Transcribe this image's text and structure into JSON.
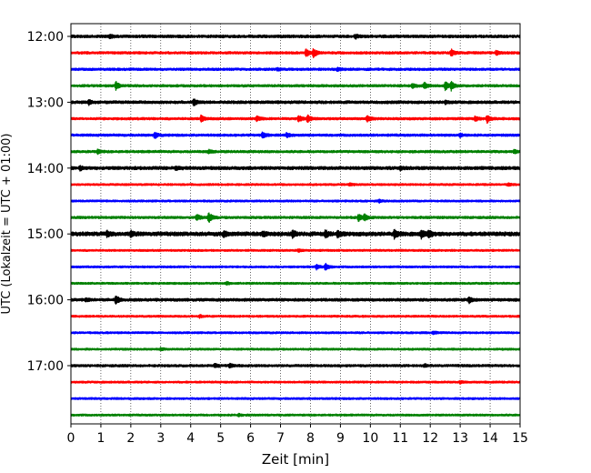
{
  "chart_data": {
    "type": "line",
    "title": "",
    "xlabel": "Zeit  [min]",
    "ylabel": "UTC (Lokalzeit = UTC + 01:00)",
    "xlim": [
      0,
      15
    ],
    "xticks": [
      0,
      1,
      2,
      3,
      4,
      5,
      6,
      7,
      8,
      9,
      10,
      11,
      12,
      13,
      14,
      15
    ],
    "x_gridlines": "dotted vertical at each minute",
    "y_tick_labels": [
      "12:00",
      "13:00",
      "14:00",
      "15:00",
      "16:00",
      "17:00"
    ],
    "trace_interval_minutes": 15,
    "color_cycle": [
      "#000000",
      "#ff0000",
      "#0000ff",
      "#008000"
    ],
    "traces": [
      {
        "start": "12:00",
        "color": "#000000",
        "noise": 0.35,
        "events": [
          {
            "t": 9.5,
            "amp": 0.5
          },
          {
            "t": 1.3,
            "amp": 0.35
          }
        ]
      },
      {
        "start": "12:15",
        "color": "#ff0000",
        "noise": 0.3,
        "events": [
          {
            "t": 7.85,
            "amp": 1.0
          },
          {
            "t": 8.1,
            "amp": 1.1
          },
          {
            "t": 12.7,
            "amp": 0.8
          },
          {
            "t": 14.2,
            "amp": 0.5
          }
        ]
      },
      {
        "start": "12:30",
        "color": "#0000ff",
        "noise": 0.3,
        "events": [
          {
            "t": 8.9,
            "amp": 0.4
          },
          {
            "t": 6.9,
            "amp": 0.3
          }
        ]
      },
      {
        "start": "12:45",
        "color": "#008000",
        "noise": 0.3,
        "events": [
          {
            "t": 1.5,
            "amp": 1.0
          },
          {
            "t": 11.8,
            "amp": 0.7
          },
          {
            "t": 12.5,
            "amp": 1.2
          },
          {
            "t": 12.7,
            "amp": 1.0
          },
          {
            "t": 11.4,
            "amp": 0.6
          }
        ]
      },
      {
        "start": "13:00",
        "color": "#000000",
        "noise": 0.35,
        "events": [
          {
            "t": 4.1,
            "amp": 0.8
          },
          {
            "t": 0.6,
            "amp": 0.5
          },
          {
            "t": 12.5,
            "amp": 0.4
          }
        ]
      },
      {
        "start": "13:15",
        "color": "#ff0000",
        "noise": 0.3,
        "events": [
          {
            "t": 4.35,
            "amp": 0.9
          },
          {
            "t": 6.2,
            "amp": 0.6
          },
          {
            "t": 7.6,
            "amp": 0.8
          },
          {
            "t": 7.9,
            "amp": 0.9
          },
          {
            "t": 9.9,
            "amp": 0.7
          },
          {
            "t": 13.9,
            "amp": 1.0
          },
          {
            "t": 13.5,
            "amp": 0.6
          }
        ]
      },
      {
        "start": "13:30",
        "color": "#0000ff",
        "noise": 0.3,
        "events": [
          {
            "t": 2.8,
            "amp": 0.8
          },
          {
            "t": 6.4,
            "amp": 0.8
          },
          {
            "t": 7.2,
            "amp": 0.5
          },
          {
            "t": 13.0,
            "amp": 0.4
          }
        ]
      },
      {
        "start": "13:45",
        "color": "#008000",
        "noise": 0.3,
        "events": [
          {
            "t": 0.9,
            "amp": 0.5
          },
          {
            "t": 4.6,
            "amp": 0.4
          },
          {
            "t": 14.8,
            "amp": 0.4
          }
        ]
      },
      {
        "start": "14:00",
        "color": "#000000",
        "noise": 0.4,
        "events": [
          {
            "t": 0.3,
            "amp": 0.5
          },
          {
            "t": 3.5,
            "amp": 0.3
          },
          {
            "t": 11.0,
            "amp": 0.4
          }
        ]
      },
      {
        "start": "14:15",
        "color": "#ff0000",
        "noise": 0.25,
        "events": [
          {
            "t": 9.3,
            "amp": 0.3
          },
          {
            "t": 14.6,
            "amp": 0.3
          }
        ]
      },
      {
        "start": "14:30",
        "color": "#0000ff",
        "noise": 0.25,
        "events": [
          {
            "t": 10.3,
            "amp": 0.3
          }
        ]
      },
      {
        "start": "14:45",
        "color": "#008000",
        "noise": 0.3,
        "events": [
          {
            "t": 4.2,
            "amp": 0.8
          },
          {
            "t": 4.6,
            "amp": 1.3
          },
          {
            "t": 9.6,
            "amp": 0.9
          },
          {
            "t": 9.8,
            "amp": 0.8
          }
        ]
      },
      {
        "start": "15:00",
        "color": "#000000",
        "noise": 0.5,
        "events": [
          {
            "t": 1.2,
            "amp": 0.6
          },
          {
            "t": 2.0,
            "amp": 0.6
          },
          {
            "t": 5.1,
            "amp": 0.6
          },
          {
            "t": 6.4,
            "amp": 0.6
          },
          {
            "t": 7.4,
            "amp": 0.8
          },
          {
            "t": 8.5,
            "amp": 0.9
          },
          {
            "t": 8.9,
            "amp": 0.7
          },
          {
            "t": 10.8,
            "amp": 1.0
          },
          {
            "t": 11.7,
            "amp": 0.9
          },
          {
            "t": 11.95,
            "amp": 0.8
          }
        ]
      },
      {
        "start": "15:15",
        "color": "#ff0000",
        "noise": 0.25,
        "events": [
          {
            "t": 7.6,
            "amp": 0.3
          }
        ]
      },
      {
        "start": "15:30",
        "color": "#0000ff",
        "noise": 0.25,
        "events": [
          {
            "t": 8.2,
            "amp": 0.6
          },
          {
            "t": 8.5,
            "amp": 0.9
          }
        ]
      },
      {
        "start": "15:45",
        "color": "#008000",
        "noise": 0.25,
        "events": [
          {
            "t": 5.2,
            "amp": 0.3
          }
        ]
      },
      {
        "start": "16:00",
        "color": "#000000",
        "noise": 0.35,
        "events": [
          {
            "t": 1.5,
            "amp": 1.1
          },
          {
            "t": 13.3,
            "amp": 0.7
          },
          {
            "t": 0.5,
            "amp": 0.3
          }
        ]
      },
      {
        "start": "16:15",
        "color": "#ff0000",
        "noise": 0.25,
        "events": [
          {
            "t": 4.3,
            "amp": 0.3
          }
        ]
      },
      {
        "start": "16:30",
        "color": "#0000ff",
        "noise": 0.25,
        "events": [
          {
            "t": 12.1,
            "amp": 0.3
          }
        ]
      },
      {
        "start": "16:45",
        "color": "#008000",
        "noise": 0.25,
        "events": [
          {
            "t": 3.0,
            "amp": 0.3
          }
        ]
      },
      {
        "start": "17:00",
        "color": "#000000",
        "noise": 0.3,
        "events": [
          {
            "t": 4.8,
            "amp": 0.5
          },
          {
            "t": 5.3,
            "amp": 0.5
          },
          {
            "t": 11.8,
            "amp": 0.3
          }
        ]
      },
      {
        "start": "17:15",
        "color": "#ff0000",
        "noise": 0.25,
        "events": [
          {
            "t": 13.0,
            "amp": 0.3
          }
        ]
      },
      {
        "start": "17:30",
        "color": "#0000ff",
        "noise": 0.25,
        "events": []
      },
      {
        "start": "17:45",
        "color": "#008000",
        "noise": 0.25,
        "events": [
          {
            "t": 5.6,
            "amp": 0.3
          }
        ]
      }
    ]
  }
}
